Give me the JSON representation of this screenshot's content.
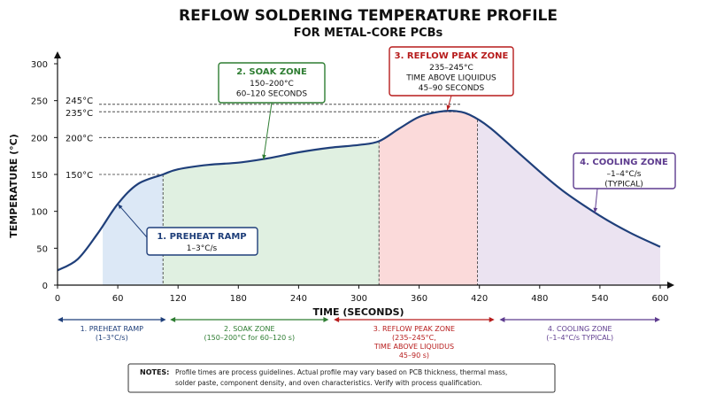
{
  "chart_data": {
    "type": "line",
    "title": "REFLOW SOLDERING TEMPERATURE PROFILE",
    "subtitle": "FOR METAL-CORE PCBs",
    "xlabel": "TIME (SECONDS)",
    "ylabel": "TEMPERATURE (°C)",
    "xlim": [
      0,
      600
    ],
    "ylim": [
      0,
      300
    ],
    "xticks": [
      "0",
      "60",
      "120",
      "180",
      "240",
      "300",
      "360",
      "420",
      "480",
      "540",
      "600"
    ],
    "yticks": [
      "0",
      "50",
      "100",
      "150",
      "200",
      "250",
      "300"
    ],
    "grid": false,
    "curve": {
      "x": [
        0,
        20,
        40,
        60,
        80,
        105,
        120,
        150,
        180,
        210,
        240,
        270,
        300,
        320,
        340,
        360,
        380,
        395,
        410,
        430,
        460,
        500,
        540,
        570,
        600
      ],
      "y": [
        20,
        35,
        70,
        110,
        137,
        150,
        157,
        163,
        166,
        172,
        180,
        186,
        190,
        195,
        212,
        228,
        235,
        236,
        231,
        214,
        178,
        131,
        94,
        71,
        52
      ]
    },
    "zones": [
      {
        "from": 0,
        "to": 105,
        "color": "#dce8f6"
      },
      {
        "from": 105,
        "to": 320,
        "color": "#e0f0e1"
      },
      {
        "from": 320,
        "to": 418,
        "color": "#fbdada"
      },
      {
        "from": 418,
        "to": 600,
        "color": "#ebe3f1"
      }
    ],
    "reference_lines": [
      {
        "label": "245°C",
        "value": 245
      },
      {
        "label": "235°C",
        "value": 235
      },
      {
        "label": "200°C",
        "value": 200
      },
      {
        "label": "150°C",
        "value": 150
      }
    ],
    "callouts": [
      {
        "title": "1. PREHEAT RAMP",
        "lines": [
          "1–3°C/s"
        ],
        "color": "#1f3f7a"
      },
      {
        "title": "2. SOAK ZONE",
        "lines": [
          "150–200°C",
          "60–120 SECONDS"
        ],
        "color": "#2e7d32"
      },
      {
        "title": "3. REFLOW PEAK ZONE",
        "lines": [
          "235–245°C",
          "TIME ABOVE LIQUIDUS",
          "45–90 SECONDS"
        ],
        "color": "#b71c1c"
      },
      {
        "title": "4. COOLING ZONE",
        "lines": [
          "–1–4°C/s",
          "(TYPICAL)"
        ],
        "color": "#5e3c8f"
      }
    ],
    "zone_bar": [
      {
        "title": "1. PREHEAT RAMP",
        "lines": [
          "(1–3°C/s)"
        ],
        "from": 0,
        "to": 108,
        "color": "#1f3f7a"
      },
      {
        "title": "2. SOAK ZONE",
        "lines": [
          "(150–200°C for 60–120 s)"
        ],
        "from": 112,
        "to": 270,
        "color": "#2e7d32"
      },
      {
        "title": "3. REFLOW PEAK ZONE",
        "lines": [
          "(235–245°C,",
          "TIME ABOVE LIQUIDUS",
          "45–90 s)"
        ],
        "from": 275,
        "to": 435,
        "color": "#b71c1c"
      },
      {
        "title": "4. COOLING ZONE",
        "lines": [
          "(–1–4°C/s TYPICAL)"
        ],
        "from": 440,
        "to": 600,
        "color": "#5e3c8f"
      }
    ]
  },
  "notes": {
    "label": "NOTES:",
    "line1": "Profile times are process guidelines. Actual profile may vary based on PCB thickness, thermal mass,",
    "line2": "solder paste, component density, and oven characteristics. Verify with process qualification."
  }
}
